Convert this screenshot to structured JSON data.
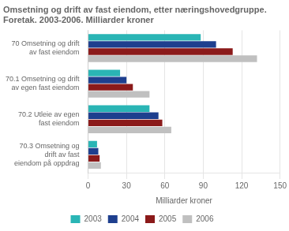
{
  "chart_data": {
    "type": "bar",
    "orientation": "horizontal",
    "title": "Omsetning og drift av fast eiendom, etter næringshovedgruppe. Foretak. 2003-2006. Milliarder kroner",
    "categories": [
      "70 Omsetning og drift\nav fast eiendom",
      "70.1 Omsetning og drift\nav egen fast eiendom",
      "70.2 Utleie av egen\nfast eiendom",
      "70.3 Omsetning og\ndrift av fast\neiendom på oppdrag"
    ],
    "series": [
      {
        "name": "2003",
        "color": "#2ab5b5",
        "values": [
          88,
          25,
          48,
          7
        ]
      },
      {
        "name": "2004",
        "color": "#1e3f8e",
        "values": [
          100,
          30,
          55,
          8
        ]
      },
      {
        "name": "2005",
        "color": "#8b1a1a",
        "values": [
          113,
          35,
          58,
          9
        ]
      },
      {
        "name": "2006",
        "color": "#c0c0c0",
        "values": [
          132,
          48,
          65,
          10
        ]
      }
    ],
    "xlabel": "Milliarder kroner",
    "xlim": [
      0,
      150
    ],
    "xticks": [
      0,
      30,
      60,
      90,
      120,
      150
    ],
    "grid": true,
    "legend": "bottom"
  }
}
